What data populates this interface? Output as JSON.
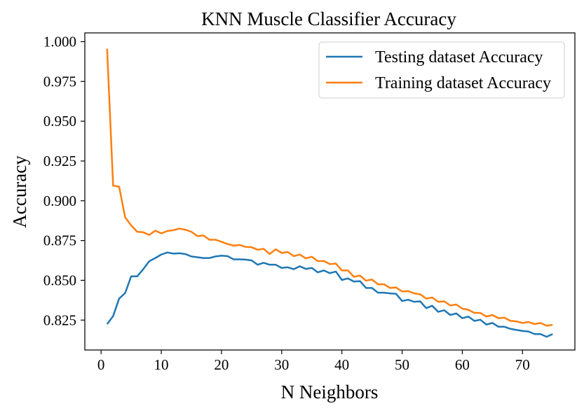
{
  "chart_data": {
    "type": "line",
    "title": "KNN Muscle Classifier Accuracy",
    "xlabel": "N Neighbors",
    "ylabel": "Accuracy",
    "xlim": [
      -2.7,
      78.7
    ],
    "ylim": [
      0.8062,
      1.0055
    ],
    "xticks": [
      0,
      10,
      20,
      30,
      40,
      50,
      60,
      70
    ],
    "yticks": [
      0.825,
      0.85,
      0.875,
      0.9,
      0.925,
      0.95,
      0.975,
      1.0
    ],
    "ytick_labels": [
      "0.825",
      "0.850",
      "0.875",
      "0.900",
      "0.925",
      "0.950",
      "0.975",
      "1.000"
    ],
    "grid": false,
    "legend_position": "top-right",
    "x": [
      1,
      2,
      3,
      4,
      5,
      6,
      7,
      8,
      9,
      10,
      11,
      12,
      13,
      14,
      15,
      16,
      17,
      18,
      19,
      20,
      21,
      22,
      23,
      24,
      25,
      26,
      27,
      28,
      29,
      30,
      31,
      32,
      33,
      34,
      35,
      36,
      37,
      38,
      39,
      40,
      41,
      42,
      43,
      44,
      45,
      46,
      47,
      48,
      49,
      50,
      51,
      52,
      53,
      54,
      55,
      56,
      57,
      58,
      59,
      60,
      61,
      62,
      63,
      64,
      65,
      66,
      67,
      68,
      69,
      70,
      71,
      72,
      73,
      74,
      75
    ],
    "series": [
      {
        "name": "Testing dataset Accuracy",
        "color": "#1f77b4",
        "values": [
          0.8225,
          0.8275,
          0.8385,
          0.842,
          0.8525,
          0.8525,
          0.857,
          0.862,
          0.864,
          0.8662,
          0.8675,
          0.8668,
          0.867,
          0.8665,
          0.865,
          0.8645,
          0.864,
          0.864,
          0.865,
          0.8655,
          0.8652,
          0.8632,
          0.8632,
          0.863,
          0.8625,
          0.8598,
          0.861,
          0.8598,
          0.8598,
          0.8578,
          0.8582,
          0.857,
          0.8588,
          0.8572,
          0.8578,
          0.855,
          0.8562,
          0.8545,
          0.8555,
          0.8502,
          0.8512,
          0.8492,
          0.8495,
          0.8452,
          0.8452,
          0.8422,
          0.8422,
          0.8418,
          0.8415,
          0.837,
          0.8378,
          0.8365,
          0.8368,
          0.8325,
          0.834,
          0.8302,
          0.8312,
          0.8282,
          0.8292,
          0.8262,
          0.8272,
          0.8245,
          0.8252,
          0.8222,
          0.8232,
          0.8208,
          0.8208,
          0.8195,
          0.8188,
          0.8182,
          0.8178,
          0.8162,
          0.8162,
          0.8145,
          0.8162
        ]
      },
      {
        "name": "Training dataset Accuracy",
        "color": "#ff7f0e",
        "values": [
          0.9955,
          0.9095,
          0.9088,
          0.8895,
          0.8845,
          0.8805,
          0.8802,
          0.8785,
          0.8812,
          0.8795,
          0.881,
          0.8815,
          0.8825,
          0.8818,
          0.8805,
          0.8778,
          0.8782,
          0.8755,
          0.8755,
          0.8742,
          0.8728,
          0.8718,
          0.8722,
          0.871,
          0.8708,
          0.8692,
          0.8698,
          0.8665,
          0.8695,
          0.8672,
          0.8678,
          0.8652,
          0.8662,
          0.8638,
          0.8648,
          0.862,
          0.8622,
          0.8602,
          0.8605,
          0.8562,
          0.8562,
          0.8522,
          0.853,
          0.8498,
          0.8505,
          0.8475,
          0.8475,
          0.8452,
          0.8455,
          0.843,
          0.8432,
          0.8418,
          0.8412,
          0.8385,
          0.8392,
          0.8365,
          0.8368,
          0.8342,
          0.8348,
          0.8322,
          0.8315,
          0.8295,
          0.8295,
          0.8272,
          0.8282,
          0.8262,
          0.8265,
          0.8245,
          0.8242,
          0.8232,
          0.8238,
          0.8225,
          0.8232,
          0.8215,
          0.822
        ]
      }
    ]
  }
}
